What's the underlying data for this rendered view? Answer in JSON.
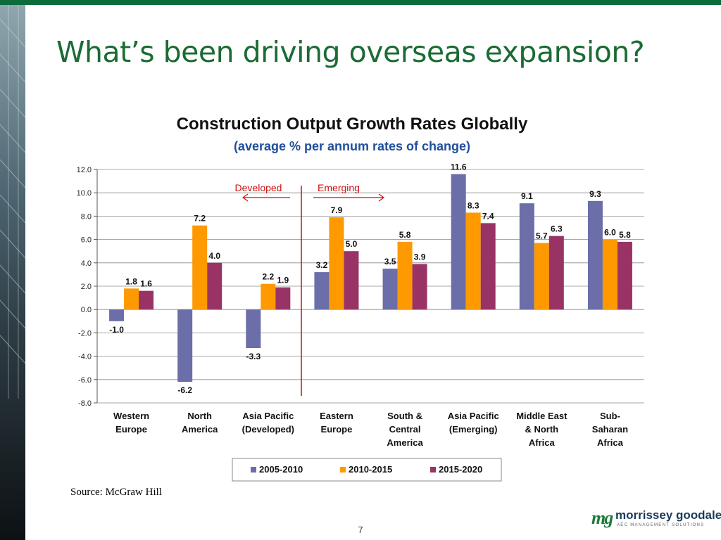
{
  "slide": {
    "title": "What’s been driving overseas expansion?",
    "source": "Source:  McGraw Hill",
    "page_number": "7"
  },
  "logo": {
    "mark": "mg",
    "name": "morrissey goodale",
    "tagline": "AEC MANAGEMENT SOLUTIONS"
  },
  "colors": {
    "title": "#1b6b34",
    "series": [
      "#6b6ea8",
      "#ff9900",
      "#993366"
    ],
    "divider": "#cc1111",
    "top_bar": "#0b6b3a"
  },
  "chart_data": {
    "type": "bar",
    "title": "Construction Output Growth Rates Globally",
    "subtitle": "(average % per annum rates of change)",
    "categories": [
      [
        "Western",
        "Europe"
      ],
      [
        "North",
        "America"
      ],
      [
        "Asia Pacific",
        "(Developed)"
      ],
      [
        "Eastern",
        "Europe"
      ],
      [
        "South &",
        "Central",
        "America"
      ],
      [
        "Asia Pacific",
        "(Emerging)"
      ],
      [
        "Middle East",
        "& North",
        "Africa"
      ],
      [
        "Sub-",
        "Saharan",
        "Africa"
      ]
    ],
    "series": [
      {
        "name": "2005-2010",
        "values": [
          -1.0,
          -6.2,
          -3.3,
          3.2,
          3.5,
          11.6,
          9.1,
          9.3
        ]
      },
      {
        "name": "2010-2015",
        "values": [
          1.8,
          7.2,
          2.2,
          7.9,
          5.8,
          8.3,
          5.7,
          6.0
        ]
      },
      {
        "name": "2015-2020",
        "values": [
          1.6,
          4.0,
          1.9,
          5.0,
          3.9,
          7.4,
          6.3,
          5.8
        ]
      }
    ],
    "ylim": [
      -8.0,
      12.0
    ],
    "yticks": [
      "12.0",
      "10.0",
      "8.0",
      "6.0",
      "4.0",
      "2.0",
      "0.0",
      "-2.0",
      "-4.0",
      "-6.0",
      "-8.0"
    ],
    "grid": true,
    "legend_position": "bottom",
    "annotations": {
      "left_label": "Developed",
      "right_label": "Emerging"
    }
  }
}
